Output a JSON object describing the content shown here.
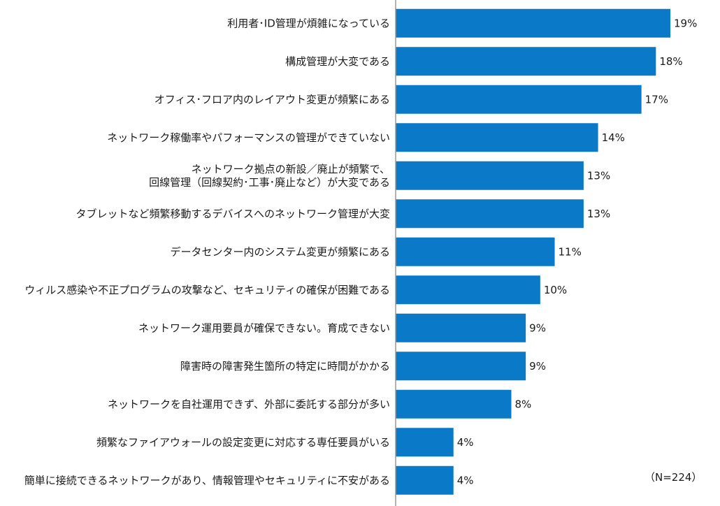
{
  "chart_data": {
    "type": "bar",
    "orientation": "horizontal",
    "categories": [
      [
        "利用者･ID管理が煩雑になっている"
      ],
      [
        "構成管理が大変である"
      ],
      [
        "オフィス･フロア内のレイアウト変更が頻繁にある"
      ],
      [
        "ネットワーク稼働率やパフォーマンスの管理ができていない"
      ],
      [
        "ネットワーク拠点の新設／廃止が頻繁で、",
        "回線管理（回線契約･工事･廃止など）が大変である"
      ],
      [
        "タブレットなど頻繁移動するデバイスへのネットワーク管理が大変"
      ],
      [
        "データセンター内のシステム変更が頻繁にある"
      ],
      [
        "ウィルス感染や不正プログラムの攻撃など、セキュリティの確保が困難である"
      ],
      [
        "ネットワーク運用要員が確保できない。育成できない"
      ],
      [
        "障害時の障害発生箇所の特定に時間がかかる"
      ],
      [
        "ネットワークを自社運用できず、外部に委託する部分が多い"
      ],
      [
        "頻繁なファイアウォールの設定変更に対応する専任要員がいる"
      ],
      [
        "簡単に接続できるネットワークがあり、情報管理やセキュリティに不安がある"
      ]
    ],
    "values": [
      19,
      18,
      17,
      14,
      13,
      13,
      11,
      10,
      9,
      9,
      8,
      4,
      4
    ],
    "value_labels": [
      "19%",
      "18%",
      "17%",
      "14%",
      "13%",
      "13%",
      "11%",
      "10%",
      "9%",
      "9%",
      "8%",
      "4%",
      "4%"
    ],
    "xlim": [
      0,
      19
    ],
    "bar_color": "#0a79c8",
    "axis_color": "#999999",
    "grid": false,
    "title": "",
    "xlabel": "",
    "ylabel": "",
    "note": "（N=224）"
  }
}
